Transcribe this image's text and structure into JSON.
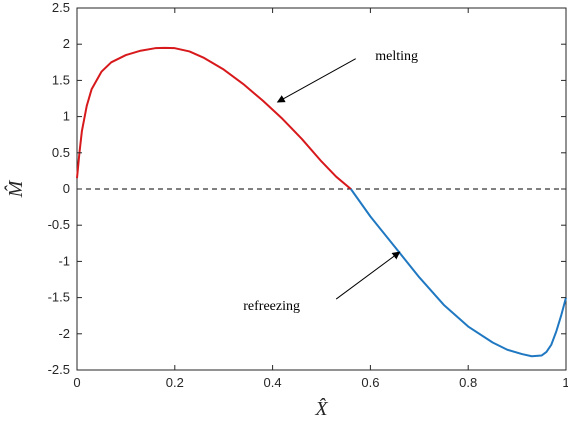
{
  "chart_data": {
    "type": "line",
    "xlabel": "X̂",
    "ylabel": "M̂",
    "xlim": [
      0,
      1
    ],
    "ylim": [
      -2.5,
      2.5
    ],
    "xticks": [
      0,
      0.2,
      0.4,
      0.6,
      0.8,
      1
    ],
    "xtick_labels": [
      "0",
      "0.2",
      "0.4",
      "0.6",
      "0.8",
      "1"
    ],
    "yticks": [
      -2.5,
      -2,
      -1.5,
      -1,
      -0.5,
      0,
      0.5,
      1,
      1.5,
      2,
      2.5
    ],
    "ytick_labels": [
      "-2.5",
      "-2",
      "-1.5",
      "-1",
      "-0.5",
      "0",
      "0.5",
      "1",
      "1.5",
      "2",
      "2.5"
    ],
    "grid": false,
    "reference_line": {
      "y": 0,
      "style": "dashed",
      "color": "#000000"
    },
    "series": [
      {
        "color": "#d7191c",
        "x": [
          0,
          0.005,
          0.01,
          0.02,
          0.03,
          0.05,
          0.07,
          0.1,
          0.13,
          0.16,
          0.18,
          0.2,
          0.23,
          0.26,
          0.3,
          0.34,
          0.38,
          0.42,
          0.46,
          0.5,
          0.53,
          0.56
        ],
        "y": [
          0.15,
          0.5,
          0.8,
          1.15,
          1.38,
          1.62,
          1.75,
          1.85,
          1.91,
          1.945,
          1.95,
          1.945,
          1.9,
          1.81,
          1.65,
          1.45,
          1.22,
          0.97,
          0.69,
          0.38,
          0.17,
          0.0
        ]
      },
      {
        "color": "#1f78c1",
        "x": [
          0.56,
          0.6,
          0.65,
          0.7,
          0.75,
          0.8,
          0.85,
          0.88,
          0.91,
          0.93,
          0.95,
          0.96,
          0.97,
          0.98,
          0.99,
          1.0
        ],
        "y": [
          0.0,
          -0.38,
          -0.8,
          -1.22,
          -1.6,
          -1.9,
          -2.12,
          -2.22,
          -2.28,
          -2.31,
          -2.3,
          -2.25,
          -2.15,
          -1.97,
          -1.75,
          -1.5
        ]
      }
    ],
    "annotations": [
      {
        "text": "melting",
        "text_x": 0.61,
        "text_y": 1.85,
        "arrow_from_x": 0.57,
        "arrow_from_y": 1.8,
        "arrow_to_x": 0.41,
        "arrow_to_y": 1.2
      },
      {
        "text": "refreezing",
        "text_x": 0.34,
        "text_y": -1.6,
        "arrow_from_x": 0.53,
        "arrow_from_y": -1.52,
        "arrow_to_x": 0.66,
        "arrow_to_y": -0.87
      }
    ]
  }
}
